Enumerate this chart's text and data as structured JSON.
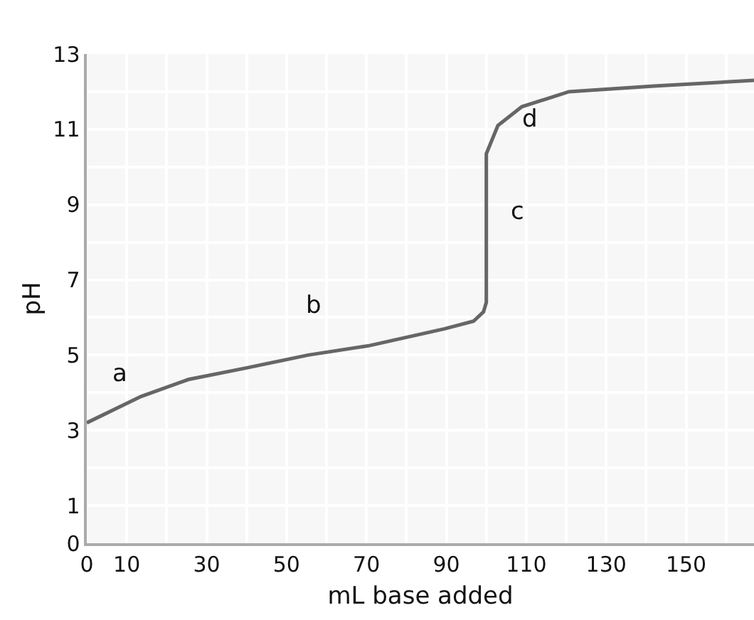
{
  "chart_data": {
    "type": "line",
    "xlabel": "mL base added",
    "ylabel": "pH",
    "x": [
      0,
      13.6,
      25.4,
      39.6,
      55.4,
      70.7,
      89.6,
      96.8,
      99.3,
      100,
      100,
      102.9,
      108.9,
      120.7,
      142,
      167
    ],
    "series": [
      {
        "color": "#666666",
        "values": [
          3.2,
          3.9,
          4.35,
          4.65,
          5.0,
          5.25,
          5.7,
          5.9,
          6.15,
          6.4,
          10.35,
          11.1,
          11.6,
          12.0,
          12.15,
          12.3
        ]
      }
    ],
    "xlim": [
      0,
      167
    ],
    "xticks": [
      0,
      10,
      30,
      50,
      70,
      90,
      110,
      130,
      150
    ],
    "ylim": [
      0,
      13
    ],
    "yticks": [
      0,
      1,
      3,
      5,
      7,
      9,
      11,
      13
    ],
    "grid": true,
    "marker": "none",
    "line_style": "solid",
    "annotations": [
      "a",
      "b",
      "c",
      "d"
    ]
  }
}
